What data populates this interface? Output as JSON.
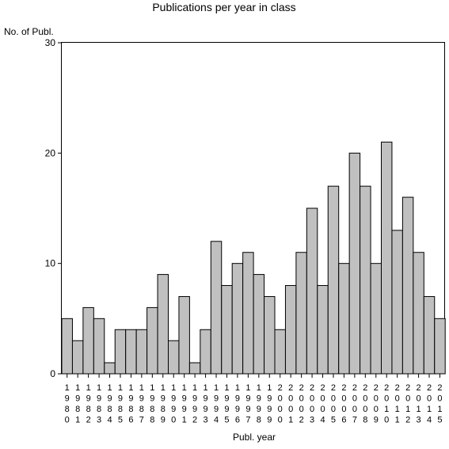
{
  "chart_data": {
    "type": "bar",
    "title": "Publications per year in class",
    "ylabel": "No. of Publ.",
    "xlabel": "Publ. year",
    "ylim": [
      0,
      30
    ],
    "yticks": [
      "0",
      "10",
      "20",
      "30"
    ],
    "categories": [
      "1980",
      "1981",
      "1982",
      "1983",
      "1984",
      "1985",
      "1986",
      "1987",
      "1988",
      "1989",
      "1990",
      "1991",
      "1992",
      "1993",
      "1994",
      "1995",
      "1996",
      "1997",
      "1998",
      "1999",
      "2000",
      "2001",
      "2002",
      "2003",
      "2004",
      "2005",
      "2006",
      "2007",
      "2008",
      "2009",
      "2010",
      "2011",
      "2012",
      "2013",
      "2014",
      "2015"
    ],
    "values": [
      5,
      3,
      6,
      5,
      1,
      4,
      4,
      4,
      6,
      9,
      3,
      7,
      1,
      4,
      12,
      8,
      10,
      11,
      9,
      7,
      4,
      8,
      11,
      15,
      8,
      17,
      10,
      20,
      17,
      10,
      21,
      13,
      16,
      11,
      7,
      5
    ],
    "colors": {
      "bar_fill": "#c0c0c0",
      "bar_stroke": "#000000"
    },
    "grid": false,
    "legend": "none"
  }
}
